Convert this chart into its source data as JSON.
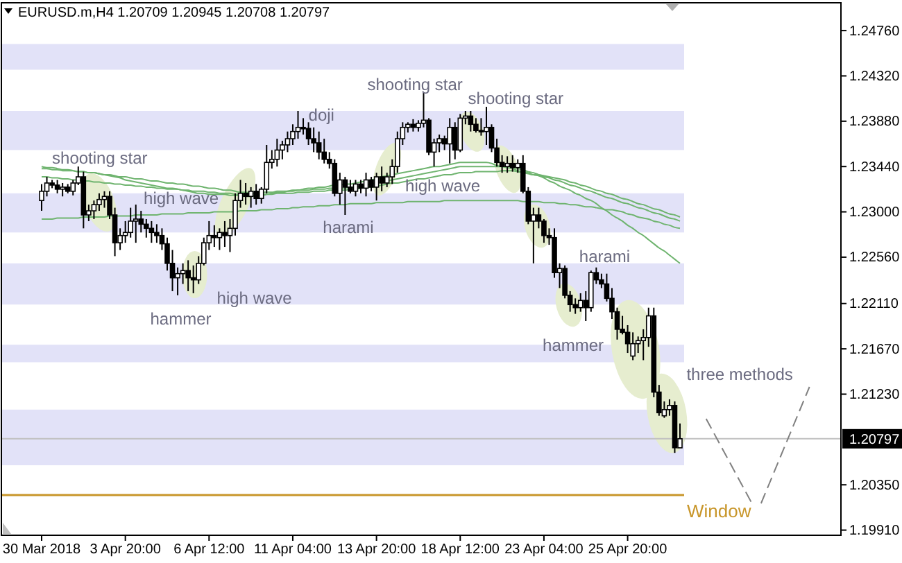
{
  "chart_data": {
    "type": "candlestick",
    "title": "EURUSD.m,H4  1.20709 1.20945 1.20708 1.20797",
    "categories": [
      "30 Mar 2018",
      null,
      null,
      null,
      null,
      null,
      null,
      null,
      null,
      null,
      null,
      null,
      null,
      null,
      null,
      null,
      "3 Apr 20:00",
      null,
      null,
      null,
      null,
      null,
      null,
      null,
      null,
      null,
      null,
      null,
      null,
      null,
      null,
      null,
      "6 Apr 12:00",
      null,
      null,
      null,
      null,
      null,
      null,
      null,
      null,
      null,
      null,
      null,
      null,
      null,
      null,
      null,
      "11 Apr 04:00",
      null,
      null,
      null,
      null,
      null,
      null,
      null,
      null,
      null,
      null,
      null,
      null,
      null,
      null,
      null,
      "13 Apr 20:00",
      null,
      null,
      null,
      null,
      null,
      null,
      null,
      null,
      null,
      null,
      null,
      null,
      null,
      null,
      null,
      "18 Apr 12:00",
      null,
      null,
      null,
      null,
      null,
      null,
      null,
      null,
      null,
      null,
      null,
      null,
      null,
      null,
      null,
      "23 Apr 04:00",
      null,
      null,
      null,
      null,
      null,
      null,
      null,
      null,
      null,
      null,
      null,
      null,
      null,
      null,
      null,
      "25 Apr 20:00",
      null,
      null,
      null,
      null,
      null,
      null,
      null,
      null,
      null,
      null
    ],
    "ohlc": [
      [
        1.2311,
        1.2327,
        1.2301,
        1.232
      ],
      [
        1.232,
        1.2334,
        1.2315,
        1.2328
      ],
      [
        1.2328,
        1.2331,
        1.2323,
        1.2326
      ],
      [
        1.2326,
        1.2331,
        1.2318,
        1.2322
      ],
      [
        1.2322,
        1.2328,
        1.2315,
        1.2324
      ],
      [
        1.2324,
        1.2327,
        1.2318,
        1.232
      ],
      [
        1.232,
        1.2331,
        1.2316,
        1.2328
      ],
      [
        1.2328,
        1.2344,
        1.2326,
        1.2334
      ],
      [
        1.2334,
        1.2339,
        1.2284,
        1.2297
      ],
      [
        1.2297,
        1.2307,
        1.2291,
        1.2301
      ],
      [
        1.2301,
        1.2311,
        1.2293,
        1.2307
      ],
      [
        1.2307,
        1.2318,
        1.2301,
        1.2312
      ],
      [
        1.2312,
        1.232,
        1.2304,
        1.2315
      ],
      [
        1.2315,
        1.232,
        1.2293,
        1.2297
      ],
      [
        1.2297,
        1.2304,
        1.2257,
        1.227
      ],
      [
        1.227,
        1.2284,
        1.2263,
        1.2277
      ],
      [
        1.2277,
        1.2291,
        1.227,
        1.228
      ],
      [
        1.228,
        1.2304,
        1.2275,
        1.2291
      ],
      [
        1.2291,
        1.2307,
        1.227,
        1.2293
      ],
      [
        1.2293,
        1.2301,
        1.228,
        1.2288
      ],
      [
        1.2288,
        1.2293,
        1.2275,
        1.2284
      ],
      [
        1.2284,
        1.2291,
        1.227,
        1.228
      ],
      [
        1.228,
        1.2288,
        1.227,
        1.2277
      ],
      [
        1.2277,
        1.2284,
        1.2263,
        1.2269
      ],
      [
        1.2269,
        1.2275,
        1.2243,
        1.225
      ],
      [
        1.225,
        1.2263,
        1.2223,
        1.2236
      ],
      [
        1.2236,
        1.2246,
        1.2219,
        1.224
      ],
      [
        1.224,
        1.225,
        1.223,
        1.2243
      ],
      [
        1.2243,
        1.2253,
        1.2223,
        1.2236
      ],
      [
        1.2236,
        1.2248,
        1.2221,
        1.2234
      ],
      [
        1.2234,
        1.2257,
        1.223,
        1.225
      ],
      [
        1.225,
        1.2275,
        1.2248,
        1.227
      ],
      [
        1.227,
        1.2291,
        1.2263,
        1.2277
      ],
      [
        1.2277,
        1.2287,
        1.2266,
        1.2275
      ],
      [
        1.2275,
        1.2284,
        1.2263,
        1.228
      ],
      [
        1.228,
        1.2291,
        1.2266,
        1.2277
      ],
      [
        1.2277,
        1.2293,
        1.2261,
        1.2284
      ],
      [
        1.2284,
        1.2318,
        1.2277,
        1.2311
      ],
      [
        1.2311,
        1.2331,
        1.2304,
        1.2318
      ],
      [
        1.2318,
        1.2328,
        1.2307,
        1.2315
      ],
      [
        1.2315,
        1.2324,
        1.2304,
        1.232
      ],
      [
        1.232,
        1.2327,
        1.2307,
        1.2313
      ],
      [
        1.2313,
        1.2324,
        1.2308,
        1.2322
      ],
      [
        1.2322,
        1.2365,
        1.2318,
        1.2348
      ],
      [
        1.2348,
        1.236,
        1.2342,
        1.2351
      ],
      [
        1.2351,
        1.2371,
        1.2344,
        1.236
      ],
      [
        1.236,
        1.2369,
        1.2351,
        1.2365
      ],
      [
        1.2365,
        1.2378,
        1.2358,
        1.2371
      ],
      [
        1.2371,
        1.2385,
        1.2365,
        1.2378
      ],
      [
        1.2378,
        1.2398,
        1.2371,
        1.2382
      ],
      [
        1.2382,
        1.2391,
        1.2375,
        1.2381
      ],
      [
        1.2381,
        1.2387,
        1.2365,
        1.2371
      ],
      [
        1.2371,
        1.2382,
        1.2358,
        1.2367
      ],
      [
        1.2367,
        1.2378,
        1.2351,
        1.2358
      ],
      [
        1.2358,
        1.2371,
        1.2347,
        1.2351
      ],
      [
        1.2351,
        1.2358,
        1.2342,
        1.2347
      ],
      [
        1.2347,
        1.2351,
        1.2315,
        1.2318
      ],
      [
        1.2318,
        1.2338,
        1.2307,
        1.2331
      ],
      [
        1.2331,
        1.2334,
        1.2297,
        1.2324
      ],
      [
        1.2324,
        1.2331,
        1.2318,
        1.232
      ],
      [
        1.232,
        1.2331,
        1.2315,
        1.2327
      ],
      [
        1.2327,
        1.2331,
        1.2318,
        1.2323
      ],
      [
        1.2323,
        1.2338,
        1.2315,
        1.2331
      ],
      [
        1.2331,
        1.2334,
        1.232,
        1.2324
      ],
      [
        1.2324,
        1.2338,
        1.2311,
        1.2334
      ],
      [
        1.2334,
        1.2344,
        1.232,
        1.2328
      ],
      [
        1.2328,
        1.2338,
        1.2324,
        1.2334
      ],
      [
        1.2334,
        1.2351,
        1.2327,
        1.2344
      ],
      [
        1.2344,
        1.2378,
        1.2338,
        1.2371
      ],
      [
        1.2371,
        1.2387,
        1.2365,
        1.2382
      ],
      [
        1.2382,
        1.2387,
        1.2377,
        1.2385
      ],
      [
        1.2385,
        1.239,
        1.2378,
        1.2382
      ],
      [
        1.2382,
        1.2389,
        1.2378,
        1.2386
      ],
      [
        1.2386,
        1.2416,
        1.2382,
        1.2389
      ],
      [
        1.2389,
        1.2391,
        1.2355,
        1.2358
      ],
      [
        1.2358,
        1.2371,
        1.2344,
        1.2367
      ],
      [
        1.2367,
        1.2375,
        1.2358,
        1.2371
      ],
      [
        1.2371,
        1.2374,
        1.236,
        1.2366
      ],
      [
        1.2366,
        1.2391,
        1.2347,
        1.2382
      ],
      [
        1.2382,
        1.2387,
        1.2351,
        1.236
      ],
      [
        1.236,
        1.2395,
        1.2358,
        1.2391
      ],
      [
        1.2391,
        1.2398,
        1.2385,
        1.2393
      ],
      [
        1.2393,
        1.2398,
        1.2378,
        1.2385
      ],
      [
        1.2385,
        1.2391,
        1.2377,
        1.2379
      ],
      [
        1.2379,
        1.2391,
        1.2374,
        1.2378
      ],
      [
        1.2378,
        1.2402,
        1.2365,
        1.2382
      ],
      [
        1.2382,
        1.2385,
        1.2358,
        1.2362
      ],
      [
        1.2362,
        1.2371,
        1.2344,
        1.2348
      ],
      [
        1.2348,
        1.2355,
        1.2338,
        1.2344
      ],
      [
        1.2344,
        1.2354,
        1.2338,
        1.2347
      ],
      [
        1.2347,
        1.2355,
        1.2339,
        1.2343
      ],
      [
        1.2343,
        1.2351,
        1.2338,
        1.2347
      ],
      [
        1.2347,
        1.2355,
        1.2318,
        1.232
      ],
      [
        1.232,
        1.2324,
        1.2288,
        1.2291
      ],
      [
        1.2291,
        1.2304,
        1.225,
        1.2297
      ],
      [
        1.2297,
        1.2304,
        1.2284,
        1.2291
      ],
      [
        1.2291,
        1.2293,
        1.227,
        1.2277
      ],
      [
        1.2277,
        1.2284,
        1.2268,
        1.2275
      ],
      [
        1.2275,
        1.2284,
        1.2236,
        1.2241
      ],
      [
        1.2241,
        1.225,
        1.2226,
        1.2245
      ],
      [
        1.2245,
        1.2248,
        1.2216,
        1.2219
      ],
      [
        1.2219,
        1.2223,
        1.2203,
        1.221
      ],
      [
        1.221,
        1.2216,
        1.2201,
        1.2207
      ],
      [
        1.2207,
        1.2221,
        1.2203,
        1.2214
      ],
      [
        1.2214,
        1.2223,
        1.2194,
        1.2207
      ],
      [
        1.2207,
        1.2243,
        1.2203,
        1.2241
      ],
      [
        1.2241,
        1.2246,
        1.223,
        1.2234
      ],
      [
        1.2234,
        1.224,
        1.2226,
        1.223
      ],
      [
        1.223,
        1.224,
        1.2213,
        1.2216
      ],
      [
        1.2216,
        1.2226,
        1.2196,
        1.2203
      ],
      [
        1.2203,
        1.2207,
        1.2176,
        1.2186
      ],
      [
        1.2186,
        1.2199,
        1.2181,
        1.2183
      ],
      [
        1.2183,
        1.219,
        1.2163,
        1.2172
      ],
      [
        1.216,
        1.2183,
        1.2156,
        1.2172
      ],
      [
        1.2172,
        1.2179,
        1.2163,
        1.2175
      ],
      [
        1.2175,
        1.2186,
        1.2156,
        1.2178
      ],
      [
        1.2178,
        1.2207,
        1.2169,
        1.2199
      ],
      [
        1.2199,
        1.2207,
        1.212,
        1.2125
      ],
      [
        1.2125,
        1.2132,
        1.2102,
        1.2105
      ],
      [
        1.2102,
        1.2116,
        1.21,
        1.2108
      ],
      [
        1.2108,
        1.2118,
        1.2102,
        1.2112
      ],
      [
        1.2112,
        1.2116,
        1.2066,
        1.2071
      ],
      [
        1.20709,
        1.20945,
        1.20708,
        1.20797
      ]
    ],
    "series": [
      {
        "type": "line",
        "color": "#6fb46f",
        "values": [
          1.2342,
          1.2342,
          1.2341,
          1.2341,
          1.234,
          1.234,
          1.234,
          1.2339,
          1.2339,
          1.2338,
          1.2338,
          1.2337,
          1.2336,
          1.2335,
          1.2334,
          1.2333,
          1.2331,
          1.233,
          1.2329,
          1.2328,
          1.2327,
          1.2326,
          1.2325,
          1.2324,
          1.2323,
          1.2323,
          1.2322,
          1.2321,
          1.232,
          1.2319,
          1.2318,
          1.2318,
          1.2317,
          1.2317,
          1.2317,
          1.2317,
          1.2316,
          1.2316,
          1.2316,
          1.2315,
          1.2315,
          1.2316,
          1.2316,
          1.2317,
          1.2318,
          1.2319,
          1.2319,
          1.232,
          1.2321,
          1.2321,
          1.2322,
          1.2323,
          1.2323,
          1.2324,
          1.2324,
          1.2325,
          1.2326,
          1.2326,
          1.2327,
          1.2327,
          1.2328,
          1.2329,
          1.233,
          1.2331,
          1.2332,
          1.2334,
          1.2335,
          1.2336,
          1.2337,
          1.2338,
          1.2339,
          1.234,
          1.2341,
          1.2342,
          1.2343,
          1.2344,
          1.2344,
          1.2345,
          1.2346,
          1.2347,
          1.2348,
          1.2348,
          1.2348,
          1.2348,
          1.2348,
          1.2348,
          1.2347,
          1.2345,
          1.2344,
          1.2343,
          1.2342,
          1.234,
          1.2339,
          1.2338,
          1.2336,
          1.2335,
          1.2333,
          1.233,
          1.2328,
          1.2325,
          1.2323,
          1.2321,
          1.2318,
          1.2316,
          1.2313,
          1.2311,
          1.2308,
          1.2304,
          1.2301,
          1.2297,
          1.2294,
          1.2291,
          1.2287,
          1.2284,
          1.228,
          1.2277,
          1.2273,
          1.2269,
          1.2265,
          1.2262,
          1.2258,
          1.2254,
          1.225
        ]
      },
      {
        "type": "line",
        "color": "#6fb46f",
        "values": [
          1.2344,
          1.2343,
          1.2343,
          1.2342,
          1.2341,
          1.2341,
          1.234,
          1.2339,
          1.2339,
          1.2338,
          1.2338,
          1.2337,
          1.2336,
          1.2336,
          1.2335,
          1.2334,
          1.2334,
          1.2333,
          1.2332,
          1.2332,
          1.2331,
          1.233,
          1.233,
          1.2329,
          1.2328,
          1.2328,
          1.2327,
          1.2327,
          1.2326,
          1.2325,
          1.2325,
          1.2324,
          1.2323,
          1.2323,
          1.2322,
          1.2321,
          1.2321,
          1.232,
          1.2319,
          1.2319,
          1.2318,
          1.2318,
          1.2319,
          1.2319,
          1.2319,
          1.232,
          1.232,
          1.232,
          1.232,
          1.2321,
          1.2321,
          1.2321,
          1.2322,
          1.2322,
          1.2322,
          1.2323,
          1.2323,
          1.2323,
          1.2323,
          1.2324,
          1.2324,
          1.2325,
          1.2326,
          1.2327,
          1.2328,
          1.2329,
          1.233,
          1.2331,
          1.2332,
          1.2333,
          1.2334,
          1.2335,
          1.2336,
          1.2337,
          1.2338,
          1.2339,
          1.234,
          1.2341,
          1.2342,
          1.2343,
          1.2344,
          1.2344,
          1.2344,
          1.2344,
          1.2344,
          1.2344,
          1.2344,
          1.2344,
          1.2344,
          1.2344,
          1.2344,
          1.2342,
          1.2341,
          1.2339,
          1.2338,
          1.2336,
          1.2334,
          1.2333,
          1.2331,
          1.233,
          1.2328,
          1.2326,
          1.2325,
          1.2323,
          1.2321,
          1.232,
          1.2318,
          1.2316,
          1.2314,
          1.2313,
          1.2311,
          1.2309,
          1.2308,
          1.2306,
          1.2304,
          1.2303,
          1.2301,
          1.2299,
          1.2298,
          1.2296,
          1.2294,
          1.2293,
          1.2291
        ]
      },
      {
        "type": "line",
        "color": "#6fb46f",
        "values": [
          1.2334,
          1.2334,
          1.2333,
          1.2333,
          1.2332,
          1.2332,
          1.2331,
          1.2331,
          1.233,
          1.233,
          1.2329,
          1.2329,
          1.2328,
          1.2328,
          1.2327,
          1.2327,
          1.2326,
          1.2326,
          1.2325,
          1.2325,
          1.2324,
          1.2324,
          1.2323,
          1.2323,
          1.2322,
          1.2322,
          1.2322,
          1.2321,
          1.2321,
          1.232,
          1.232,
          1.232,
          1.2319,
          1.2319,
          1.2318,
          1.2318,
          1.2318,
          1.2317,
          1.2317,
          1.2316,
          1.2316,
          1.2316,
          1.2317,
          1.2317,
          1.2317,
          1.2318,
          1.2318,
          1.2318,
          1.2318,
          1.2319,
          1.2319,
          1.2319,
          1.232,
          1.232,
          1.232,
          1.2321,
          1.2321,
          1.2321,
          1.2321,
          1.2322,
          1.2322,
          1.2323,
          1.2324,
          1.2324,
          1.2325,
          1.2326,
          1.2327,
          1.2328,
          1.2328,
          1.2329,
          1.233,
          1.2331,
          1.2332,
          1.2332,
          1.2333,
          1.2334,
          1.2335,
          1.2336,
          1.2336,
          1.2337,
          1.2338,
          1.2338,
          1.2338,
          1.2339,
          1.2339,
          1.2339,
          1.2339,
          1.2339,
          1.234,
          1.234,
          1.234,
          1.2339,
          1.2338,
          1.2337,
          1.2336,
          1.2336,
          1.2335,
          1.2334,
          1.2333,
          1.2332,
          1.2331,
          1.2329,
          1.2328,
          1.2326,
          1.2325,
          1.2323,
          1.2321,
          1.232,
          1.2318,
          1.2317,
          1.2315,
          1.2313,
          1.2312,
          1.231,
          1.2308,
          1.2307,
          1.2305,
          1.2303,
          1.2302,
          1.23,
          1.2298,
          1.2297,
          1.2295
        ]
      },
      {
        "type": "line",
        "color": "#6fb46f",
        "values": [
          1.2293,
          1.2293,
          1.2293,
          1.2294,
          1.2294,
          1.2294,
          1.2294,
          1.2294,
          1.2295,
          1.2295,
          1.2295,
          1.2295,
          1.2295,
          1.2296,
          1.2296,
          1.2296,
          1.2296,
          1.2296,
          1.2297,
          1.2297,
          1.2297,
          1.2297,
          1.2297,
          1.2298,
          1.2298,
          1.2298,
          1.2298,
          1.2298,
          1.2299,
          1.2299,
          1.2299,
          1.2299,
          1.2299,
          1.23,
          1.23,
          1.23,
          1.23,
          1.23,
          1.2301,
          1.2301,
          1.2301,
          1.2301,
          1.2302,
          1.2302,
          1.2302,
          1.2303,
          1.2303,
          1.2303,
          1.2304,
          1.2304,
          1.2305,
          1.2305,
          1.2305,
          1.2306,
          1.2306,
          1.2306,
          1.2307,
          1.2307,
          1.2307,
          1.2308,
          1.2308,
          1.2308,
          1.2308,
          1.2308,
          1.2309,
          1.2309,
          1.2309,
          1.2309,
          1.2309,
          1.2309,
          1.231,
          1.231,
          1.231,
          1.231,
          1.231,
          1.231,
          1.231,
          1.2311,
          1.2311,
          1.2311,
          1.2311,
          1.2311,
          1.2311,
          1.2311,
          1.2311,
          1.2311,
          1.2311,
          1.2311,
          1.2311,
          1.2311,
          1.2311,
          1.2311,
          1.231,
          1.231,
          1.231,
          1.231,
          1.2309,
          1.2309,
          1.2309,
          1.2308,
          1.2308,
          1.2307,
          1.2307,
          1.2306,
          1.2305,
          1.2305,
          1.2304,
          1.2303,
          1.2302,
          1.2302,
          1.2301,
          1.23,
          1.2298,
          1.2297,
          1.2295,
          1.2294,
          1.2293,
          1.2291,
          1.229,
          1.2288,
          1.2287,
          1.2285,
          1.2284
        ]
      }
    ],
    "ylim": [
      1.1986,
      1.2503
    ],
    "yticks": [
      {
        "value": 1.2476,
        "label": "1.24760"
      },
      {
        "value": 1.2432,
        "label": "1.24320"
      },
      {
        "value": 1.2388,
        "label": "1.23880"
      },
      {
        "value": 1.2344,
        "label": "1.23440"
      },
      {
        "value": 1.23,
        "label": "1.23000"
      },
      {
        "value": 1.2256,
        "label": "1.22560"
      },
      {
        "value": 1.2211,
        "label": "1.22110"
      },
      {
        "value": 1.2167,
        "label": "1.21670"
      },
      {
        "value": 1.2123,
        "label": "1.21230"
      },
      {
        "value": 1.2035,
        "label": "1.20350"
      },
      {
        "value": 1.1991,
        "label": "1.19910"
      }
    ],
    "bands": [
      {
        "axis": "y",
        "from": 1.2438,
        "to": 1.2463,
        "color": "#e2e2f8"
      },
      {
        "axis": "y",
        "from": 1.236,
        "to": 1.2398,
        "color": "#e2e2f8"
      },
      {
        "axis": "y",
        "from": 1.228,
        "to": 1.2318,
        "color": "#e2e2f8"
      },
      {
        "axis": "y",
        "from": 1.221,
        "to": 1.225,
        "color": "#e2e2f8"
      },
      {
        "axis": "y",
        "from": 1.2154,
        "to": 1.2171,
        "color": "#e2e2f8"
      },
      {
        "axis": "y",
        "from": 1.2054,
        "to": 1.2108,
        "color": "#e2e2f8"
      }
    ],
    "ref_lines": [
      {
        "axis": "y",
        "value": 1.2025,
        "label": "Window",
        "color": "#c8962a"
      },
      {
        "axis": "y",
        "value": 1.20797,
        "label": "1.20797",
        "color": "#c0c0c0"
      }
    ],
    "annotations": [
      "shooting star",
      "high wave",
      "hammer",
      "high wave",
      "doji",
      "harami",
      "shooting star",
      "high wave",
      "shooting star",
      "harami",
      "hammer",
      "three methods"
    ]
  }
}
